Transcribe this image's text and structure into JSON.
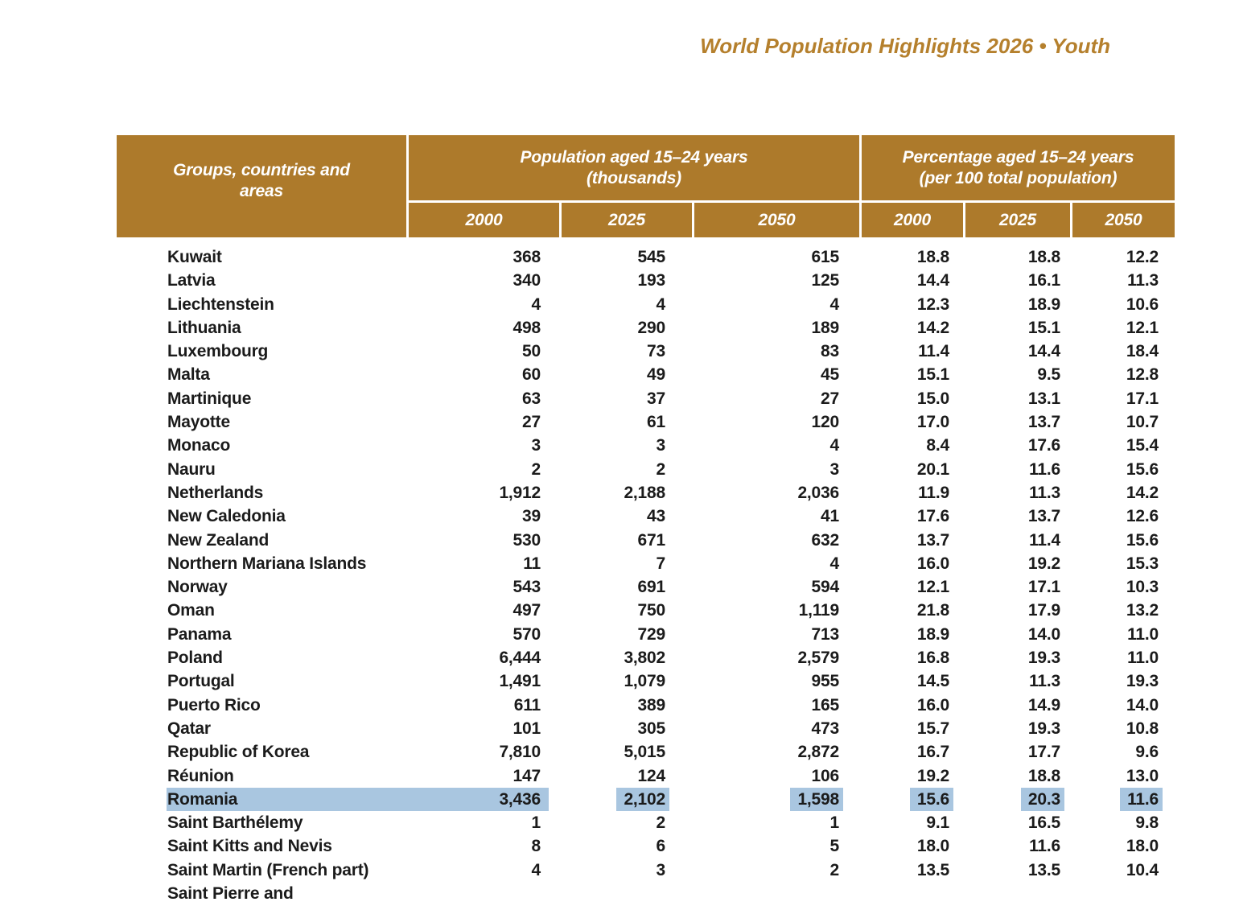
{
  "page": {
    "title": "World Population Highlights 2026 • Youth"
  },
  "colors": {
    "header_bg": "#AD7A2B",
    "title_text": "#B5802D",
    "selection_highlight": "#A9C6E0",
    "body_text": "#1B1B1B"
  },
  "table": {
    "row_header": "Groups, countries and areas",
    "group_pop": {
      "line1": "Population aged 15–24 years",
      "line2": "(thousands)"
    },
    "group_pct": {
      "line1": "Percentage aged 15–24 years",
      "line2": "(per 100 total population)"
    },
    "year_headers": [
      "2000",
      "2025",
      "2050",
      "2000",
      "2025",
      "2050"
    ],
    "rows": [
      {
        "name": "Kuwait",
        "values": [
          "368",
          "545",
          "615",
          "18.8",
          "18.8",
          "12.2"
        ]
      },
      {
        "name": "Latvia",
        "values": [
          "340",
          "193",
          "125",
          "14.4",
          "16.1",
          "11.3"
        ]
      },
      {
        "name": "Liechtenstein",
        "values": [
          "4",
          "4",
          "4",
          "12.3",
          "18.9",
          "10.6"
        ]
      },
      {
        "name": "Lithuania",
        "values": [
          "498",
          "290",
          "189",
          "14.2",
          "15.1",
          "12.1"
        ]
      },
      {
        "name": "Luxembourg",
        "values": [
          "50",
          "73",
          "83",
          "11.4",
          "14.4",
          "18.4"
        ]
      },
      {
        "name": "Malta",
        "values": [
          "60",
          "49",
          "45",
          "15.1",
          "9.5",
          "12.8"
        ]
      },
      {
        "name": "Martinique",
        "values": [
          "63",
          "37",
          "27",
          "15.0",
          "13.1",
          "17.1"
        ]
      },
      {
        "name": "Mayotte",
        "values": [
          "27",
          "61",
          "120",
          "17.0",
          "13.7",
          "10.7"
        ]
      },
      {
        "name": "Monaco",
        "values": [
          "3",
          "3",
          "4",
          "8.4",
          "17.6",
          "15.4"
        ]
      },
      {
        "name": "Nauru",
        "values": [
          "2",
          "2",
          "3",
          "20.1",
          "11.6",
          "15.6"
        ]
      },
      {
        "name": "Netherlands",
        "values": [
          "1,912",
          "2,188",
          "2,036",
          "11.9",
          "11.3",
          "14.2"
        ]
      },
      {
        "name": "New Caledonia",
        "values": [
          "39",
          "43",
          "41",
          "17.6",
          "13.7",
          "12.6"
        ]
      },
      {
        "name": "New Zealand",
        "values": [
          "530",
          "671",
          "632",
          "13.7",
          "11.4",
          "15.6"
        ]
      },
      {
        "name": "Northern Mariana Islands",
        "values": [
          "11",
          "7",
          "4",
          "16.0",
          "19.2",
          "15.3"
        ]
      },
      {
        "name": "Norway",
        "values": [
          "543",
          "691",
          "594",
          "12.1",
          "17.1",
          "10.3"
        ]
      },
      {
        "name": "Oman",
        "values": [
          "497",
          "750",
          "1,119",
          "21.8",
          "17.9",
          "13.2"
        ]
      },
      {
        "name": "Panama",
        "values": [
          "570",
          "729",
          "713",
          "18.9",
          "14.0",
          "11.0"
        ]
      },
      {
        "name": "Poland",
        "values": [
          "6,444",
          "3,802",
          "2,579",
          "16.8",
          "19.3",
          "11.0"
        ]
      },
      {
        "name": "Portugal",
        "values": [
          "1,491",
          "1,079",
          "955",
          "14.5",
          "11.3",
          "19.3"
        ]
      },
      {
        "name": "Puerto Rico",
        "values": [
          "611",
          "389",
          "165",
          "16.0",
          "14.9",
          "14.0"
        ]
      },
      {
        "name": "Qatar",
        "values": [
          "101",
          "305",
          "473",
          "15.7",
          "19.3",
          "10.8"
        ]
      },
      {
        "name": "Republic of Korea",
        "values": [
          "7,810",
          "5,015",
          "2,872",
          "16.7",
          "17.7",
          "9.6"
        ]
      },
      {
        "name": "Réunion",
        "values": [
          "147",
          "124",
          "106",
          "19.2",
          "18.8",
          "13.0"
        ]
      },
      {
        "name": "Romania",
        "values": [
          "3,436",
          "2,102",
          "1,598",
          "15.6",
          "20.3",
          "11.6"
        ],
        "highlighted": true
      },
      {
        "name": "Saint Barthélemy",
        "values": [
          "1",
          "2",
          "1",
          "9.1",
          "16.5",
          "9.8"
        ]
      },
      {
        "name": "Saint Kitts and Nevis",
        "values": [
          "8",
          "6",
          "5",
          "18.0",
          "11.6",
          "18.0"
        ]
      },
      {
        "name": "Saint Martin (French part)",
        "values": [
          "4",
          "3",
          "2",
          "13.5",
          "13.5",
          "10.4"
        ]
      },
      {
        "name": "Saint Pierre and",
        "values": [
          "",
          "",
          "",
          "",
          "",
          ""
        ]
      }
    ]
  }
}
